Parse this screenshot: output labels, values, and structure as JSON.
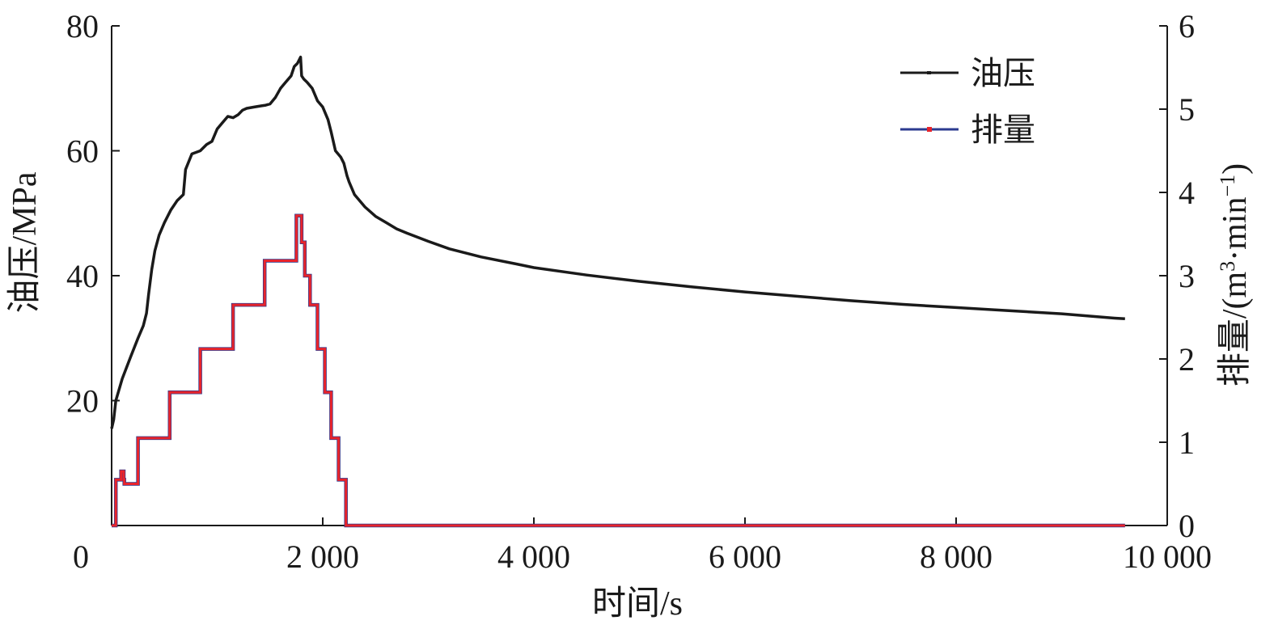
{
  "chart_data": {
    "type": "line",
    "xlabel": "时间/s",
    "ylabel_left": "油压/MPa",
    "ylabel_right_base": "排量/(m",
    "ylabel_right_sup1": "3",
    "ylabel_right_mid": "·min",
    "ylabel_right_sup2": "−1",
    "ylabel_right_end": ")",
    "xlim": [
      0,
      10000
    ],
    "ylim_left": [
      0,
      80
    ],
    "ylim_right": [
      0,
      6
    ],
    "x_ticks": [
      {
        "value": 0,
        "label": "0"
      },
      {
        "value": 2000,
        "label": "2 000"
      },
      {
        "value": 4000,
        "label": "4 000"
      },
      {
        "value": 6000,
        "label": "6 000"
      },
      {
        "value": 8000,
        "label": "8 000"
      },
      {
        "value": 10000,
        "label": "10 000"
      }
    ],
    "y_left_ticks": [
      {
        "value": 20,
        "label": "20"
      },
      {
        "value": 40,
        "label": "40"
      },
      {
        "value": 60,
        "label": "60"
      },
      {
        "value": 80,
        "label": "80"
      }
    ],
    "y_right_ticks": [
      {
        "value": 0,
        "label": "0"
      },
      {
        "value": 1,
        "label": "1"
      },
      {
        "value": 2,
        "label": "2"
      },
      {
        "value": 3,
        "label": "3"
      },
      {
        "value": 4,
        "label": "4"
      },
      {
        "value": 5,
        "label": "5"
      },
      {
        "value": 6,
        "label": "6"
      }
    ],
    "legend_position": "top-right",
    "series": [
      {
        "name": "油压",
        "axis": "left",
        "color": "#1a1a1a",
        "style": "line",
        "points": [
          [
            0,
            15.5
          ],
          [
            20,
            17
          ],
          [
            40,
            20
          ],
          [
            100,
            23.5
          ],
          [
            180,
            27
          ],
          [
            250,
            30
          ],
          [
            300,
            32
          ],
          [
            330,
            34
          ],
          [
            350,
            37
          ],
          [
            380,
            41
          ],
          [
            410,
            44
          ],
          [
            450,
            46.5
          ],
          [
            500,
            48.5
          ],
          [
            560,
            50.5
          ],
          [
            620,
            52
          ],
          [
            680,
            53
          ],
          [
            700,
            57
          ],
          [
            760,
            59.5
          ],
          [
            840,
            60
          ],
          [
            900,
            61
          ],
          [
            950,
            61.5
          ],
          [
            1000,
            63.5
          ],
          [
            1050,
            64.5
          ],
          [
            1100,
            65.5
          ],
          [
            1150,
            65.3
          ],
          [
            1200,
            65.8
          ],
          [
            1240,
            66.5
          ],
          [
            1280,
            66.8
          ],
          [
            1350,
            67
          ],
          [
            1420,
            67.2
          ],
          [
            1460,
            67.3
          ],
          [
            1500,
            67.5
          ],
          [
            1550,
            68.5
          ],
          [
            1600,
            70
          ],
          [
            1650,
            71
          ],
          [
            1700,
            72
          ],
          [
            1730,
            73.5
          ],
          [
            1760,
            74
          ],
          [
            1790,
            75
          ],
          [
            1800,
            72
          ],
          [
            1820,
            71.5
          ],
          [
            1850,
            71
          ],
          [
            1900,
            70
          ],
          [
            1950,
            68
          ],
          [
            2000,
            67
          ],
          [
            2050,
            65
          ],
          [
            2080,
            63
          ],
          [
            2120,
            60
          ],
          [
            2170,
            59
          ],
          [
            2200,
            58
          ],
          [
            2230,
            56
          ],
          [
            2250,
            55
          ],
          [
            2300,
            53
          ],
          [
            2400,
            51
          ],
          [
            2500,
            49.5
          ],
          [
            2600,
            48.5
          ],
          [
            2700,
            47.5
          ],
          [
            2800,
            46.8
          ],
          [
            3000,
            45.5
          ],
          [
            3200,
            44.3
          ],
          [
            3500,
            43
          ],
          [
            3800,
            42
          ],
          [
            4000,
            41.3
          ],
          [
            4500,
            40.1
          ],
          [
            5000,
            39.1
          ],
          [
            5500,
            38.2
          ],
          [
            6000,
            37.4
          ],
          [
            6500,
            36.7
          ],
          [
            7000,
            36
          ],
          [
            7500,
            35.4
          ],
          [
            8000,
            34.9
          ],
          [
            8500,
            34.4
          ],
          [
            9000,
            33.9
          ],
          [
            9500,
            33.2
          ],
          [
            9600,
            33.1
          ]
        ]
      },
      {
        "name": "排量",
        "axis": "right",
        "color": "#e8242b",
        "marker_color": "#2b3a8f",
        "style": "step",
        "points": [
          [
            0,
            0
          ],
          [
            20,
            0
          ],
          [
            40,
            0
          ],
          [
            40,
            0.55
          ],
          [
            90,
            0.55
          ],
          [
            90,
            0.65
          ],
          [
            115,
            0.65
          ],
          [
            115,
            0.55
          ],
          [
            120,
            0.55
          ],
          [
            120,
            0.5
          ],
          [
            250,
            0.5
          ],
          [
            250,
            1.05
          ],
          [
            550,
            1.05
          ],
          [
            550,
            1.6
          ],
          [
            840,
            1.6
          ],
          [
            840,
            2.12
          ],
          [
            1150,
            2.12
          ],
          [
            1150,
            2.65
          ],
          [
            1450,
            2.65
          ],
          [
            1450,
            3.18
          ],
          [
            1750,
            3.18
          ],
          [
            1750,
            3.72
          ],
          [
            1800,
            3.72
          ],
          [
            1800,
            3.4
          ],
          [
            1830,
            3.4
          ],
          [
            1830,
            3.0
          ],
          [
            1880,
            3.0
          ],
          [
            1880,
            2.65
          ],
          [
            1950,
            2.65
          ],
          [
            1950,
            2.12
          ],
          [
            2020,
            2.12
          ],
          [
            2020,
            1.6
          ],
          [
            2080,
            1.6
          ],
          [
            2080,
            1.05
          ],
          [
            2150,
            1.05
          ],
          [
            2150,
            0.55
          ],
          [
            2220,
            0.55
          ],
          [
            2220,
            0
          ],
          [
            9600,
            0
          ]
        ]
      }
    ]
  }
}
